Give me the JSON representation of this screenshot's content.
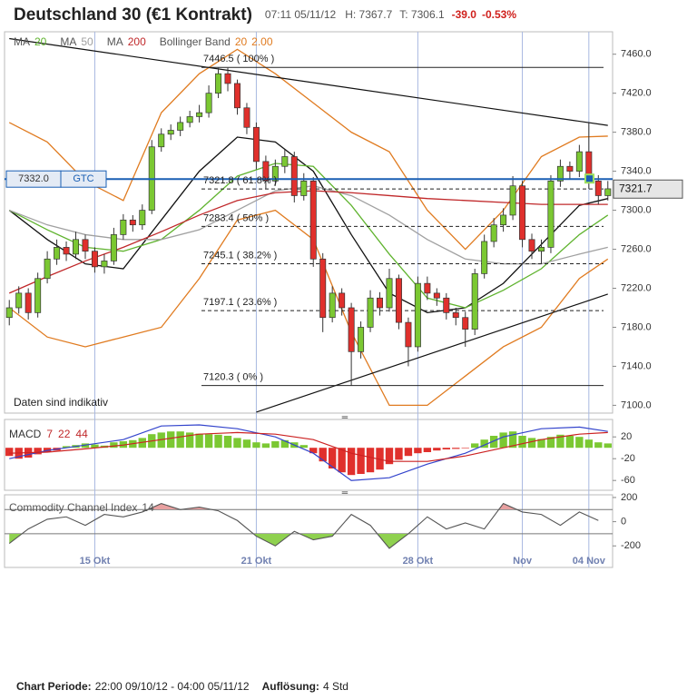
{
  "header": {
    "title": "Deutschland 30 (€1 Kontrakt)",
    "time": "07:11 05/11/12",
    "high": "H: 7367.7",
    "low": "T: 7306.1",
    "change": "-39.0",
    "change_pct": "-0.53%"
  },
  "chart_data": [
    {
      "type": "candlestick",
      "xlim": [
        -0.5,
        63.5
      ],
      "xticks": [
        {
          "value": 9,
          "label": "15 Okt"
        },
        {
          "value": 26,
          "label": "21 Okt"
        },
        {
          "value": 43,
          "label": "28 Okt"
        },
        {
          "value": 54,
          "label": "Nov"
        },
        {
          "value": 61,
          "label": "04 Nov"
        }
      ],
      "ylim": [
        7092,
        7483
      ],
      "yticks": [
        {
          "value": 7100,
          "label": "7100.0"
        },
        {
          "value": 7140,
          "label": "7140.0"
        },
        {
          "value": 7180,
          "label": "7180.0"
        },
        {
          "value": 7220,
          "label": "7220.0"
        },
        {
          "value": 7260,
          "label": "7260.0"
        },
        {
          "value": 7300,
          "label": "7300.0"
        },
        {
          "value": 7340,
          "label": "7340.0"
        },
        {
          "value": 7380,
          "label": "7380.0"
        },
        {
          "value": 7420,
          "label": "7420.0"
        },
        {
          "value": 7460,
          "label": "7460.0"
        }
      ],
      "up_color": "#7bc832",
      "down_color": "#e0302c",
      "open": [
        7190,
        7200,
        7215,
        7195,
        7230,
        7250,
        7262,
        7255,
        7270,
        7258,
        7242,
        7248,
        7275,
        7290,
        7285,
        7300,
        7365,
        7378,
        7382,
        7390,
        7396,
        7400,
        7420,
        7440,
        7430,
        7405,
        7385,
        7350,
        7330,
        7345,
        7355,
        7315,
        7330,
        7250,
        7190,
        7215,
        7200,
        7155,
        7180,
        7210,
        7200,
        7230,
        7185,
        7160,
        7225,
        7215,
        7210,
        7195,
        7190,
        7178,
        7235,
        7268,
        7285,
        7295,
        7325,
        7270,
        7258,
        7262,
        7330,
        7345,
        7340,
        7360,
        7330,
        7315
      ],
      "high": [
        7208,
        7222,
        7220,
        7236,
        7258,
        7270,
        7268,
        7278,
        7275,
        7262,
        7255,
        7282,
        7296,
        7295,
        7306,
        7372,
        7384,
        7388,
        7396,
        7402,
        7408,
        7428,
        7446,
        7446,
        7434,
        7410,
        7390,
        7356,
        7352,
        7362,
        7360,
        7338,
        7334,
        7256,
        7222,
        7220,
        7205,
        7186,
        7218,
        7216,
        7240,
        7234,
        7190,
        7232,
        7232,
        7220,
        7215,
        7200,
        7196,
        7240,
        7275,
        7292,
        7302,
        7335,
        7330,
        7276,
        7270,
        7336,
        7352,
        7350,
        7367,
        7390,
        7336,
        7330
      ],
      "low": [
        7182,
        7194,
        7188,
        7190,
        7225,
        7244,
        7248,
        7250,
        7250,
        7236,
        7235,
        7244,
        7270,
        7278,
        7280,
        7296,
        7360,
        7372,
        7376,
        7385,
        7390,
        7395,
        7415,
        7422,
        7398,
        7378,
        7342,
        7322,
        7325,
        7338,
        7308,
        7310,
        7242,
        7175,
        7185,
        7192,
        7120,
        7148,
        7175,
        7192,
        7196,
        7178,
        7140,
        7155,
        7208,
        7202,
        7188,
        7182,
        7160,
        7172,
        7230,
        7262,
        7278,
        7290,
        7262,
        7250,
        7245,
        7256,
        7324,
        7332,
        7334,
        7322,
        7306,
        7310
      ],
      "close": [
        7200,
        7215,
        7195,
        7230,
        7250,
        7262,
        7255,
        7270,
        7258,
        7242,
        7248,
        7275,
        7290,
        7285,
        7300,
        7365,
        7378,
        7382,
        7390,
        7396,
        7400,
        7420,
        7440,
        7430,
        7405,
        7385,
        7350,
        7330,
        7345,
        7355,
        7315,
        7330,
        7250,
        7190,
        7215,
        7200,
        7155,
        7180,
        7210,
        7200,
        7230,
        7185,
        7160,
        7225,
        7215,
        7210,
        7195,
        7190,
        7178,
        7235,
        7268,
        7285,
        7295,
        7325,
        7270,
        7258,
        7262,
        7330,
        7345,
        7340,
        7360,
        7330,
        7315,
        7322
      ],
      "lines": [
        {
          "name": "MA",
          "param": "20",
          "color": "#5fb32e",
          "x": [
            0,
            4,
            8,
            12,
            16,
            20,
            24,
            28,
            32,
            36,
            40,
            44,
            48,
            52,
            56,
            60,
            63
          ],
          "values": [
            7300,
            7280,
            7262,
            7258,
            7270,
            7300,
            7335,
            7348,
            7345,
            7305,
            7255,
            7210,
            7200,
            7218,
            7240,
            7275,
            7295
          ]
        },
        {
          "name": "MA",
          "param": "50",
          "color": "#a0a0a0",
          "x": [
            0,
            4,
            8,
            12,
            16,
            20,
            24,
            28,
            32,
            36,
            40,
            44,
            48,
            52,
            56,
            60,
            63
          ],
          "values": [
            7300,
            7285,
            7275,
            7270,
            7270,
            7280,
            7300,
            7320,
            7325,
            7315,
            7295,
            7270,
            7250,
            7245,
            7245,
            7255,
            7262
          ]
        },
        {
          "name": "MA",
          "param": "200",
          "color": "#c0282a",
          "x": [
            0,
            4,
            8,
            12,
            16,
            20,
            24,
            28,
            32,
            36,
            40,
            44,
            48,
            52,
            56,
            60,
            63
          ],
          "values": [
            7215,
            7232,
            7248,
            7262,
            7278,
            7295,
            7310,
            7318,
            7320,
            7318,
            7315,
            7312,
            7310,
            7308,
            7306,
            7306,
            7306
          ]
        }
      ],
      "bollinger": {
        "name": "Bollinger Band",
        "params": [
          "20",
          "2.00"
        ],
        "color": "#e07b20",
        "middle_color": "#111111",
        "x": [
          0,
          4,
          8,
          12,
          16,
          20,
          24,
          28,
          32,
          36,
          40,
          44,
          48,
          52,
          56,
          60,
          63
        ],
        "upper": [
          7390,
          7370,
          7330,
          7310,
          7400,
          7440,
          7465,
          7440,
          7410,
          7380,
          7360,
          7300,
          7260,
          7300,
          7355,
          7375,
          7376
        ],
        "middle": [
          7300,
          7270,
          7245,
          7240,
          7290,
          7340,
          7375,
          7370,
          7340,
          7275,
          7215,
          7195,
          7200,
          7225,
          7265,
          7305,
          7312
        ],
        "lower": [
          7200,
          7170,
          7160,
          7170,
          7180,
          7230,
          7290,
          7300,
          7270,
          7175,
          7100,
          7100,
          7130,
          7160,
          7180,
          7230,
          7250
        ]
      },
      "fib_levels": [
        {
          "value": 7446.5,
          "label": "7446.5 ( 100% )"
        },
        {
          "value": 7321.8,
          "label": "7321.8 ( 61.8% )"
        },
        {
          "value": 7283.4,
          "label": "7283.4 ( 50% )"
        },
        {
          "value": 7245.1,
          "label": "7245.1 ( 38.2% )"
        },
        {
          "value": 7197.1,
          "label": "7197.1 ( 23.6% )"
        },
        {
          "value": 7120.3,
          "label": "7120.3 ( 0% )"
        }
      ],
      "trendlines": [
        {
          "x": [
            0,
            63
          ],
          "values": [
            7476,
            7387
          ]
        },
        {
          "x": [
            26,
            63
          ],
          "values": [
            7093,
            7214
          ]
        }
      ],
      "order_line": {
        "value": 7332.0,
        "label": "7332.0",
        "tag": "GTC"
      },
      "last_price": {
        "value": 7321.7,
        "label": "7321.7"
      },
      "note": "Daten sind indikativ"
    },
    {
      "type": "macd",
      "label": "MACD",
      "params": [
        "7",
        "22",
        "44"
      ],
      "ylim": [
        -78,
        52
      ],
      "yticks": [
        20,
        -20,
        -60
      ],
      "pos_color": "#7bc832",
      "neg_color": "#e0302c",
      "histogram": [
        -15,
        -20,
        -18,
        -12,
        -8,
        -5,
        3,
        5,
        8,
        6,
        4,
        10,
        12,
        14,
        18,
        25,
        28,
        30,
        30,
        28,
        26,
        25,
        24,
        22,
        18,
        15,
        10,
        8,
        12,
        14,
        10,
        5,
        -10,
        -25,
        -38,
        -45,
        -50,
        -48,
        -45,
        -40,
        -30,
        -22,
        -15,
        -10,
        -8,
        -5,
        -3,
        -2,
        -1,
        8,
        15,
        22,
        28,
        30,
        22,
        18,
        16,
        20,
        24,
        22,
        20,
        15,
        10,
        8
      ],
      "lines": [
        {
          "color": "#3344cc",
          "x": [
            0,
            4,
            8,
            12,
            16,
            20,
            24,
            28,
            32,
            36,
            40,
            44,
            48,
            52,
            56,
            60,
            63
          ],
          "values": [
            -20,
            -5,
            5,
            15,
            40,
            42,
            35,
            20,
            -10,
            -60,
            -55,
            -30,
            -10,
            20,
            35,
            38,
            30
          ]
        },
        {
          "color": "#cc2222",
          "x": [
            0,
            4,
            8,
            12,
            16,
            20,
            24,
            28,
            32,
            36,
            40,
            44,
            48,
            52,
            56,
            60,
            63
          ],
          "values": [
            -10,
            -8,
            -2,
            5,
            15,
            25,
            28,
            25,
            15,
            -10,
            -25,
            -25,
            -15,
            0,
            15,
            25,
            28
          ]
        }
      ]
    },
    {
      "type": "cci",
      "label": "Commodity Channel Index",
      "param": "14",
      "ylim": [
        -378,
        222
      ],
      "yticks": [
        200,
        0,
        -200
      ],
      "bands": [
        100,
        -100
      ],
      "color": "#555555",
      "over_color": "#e8a0a0",
      "under_color": "#8fd14f",
      "x": [
        0,
        2,
        4,
        6,
        8,
        10,
        12,
        14,
        16,
        18,
        20,
        22,
        24,
        26,
        28,
        30,
        32,
        34,
        36,
        38,
        40,
        42,
        44,
        46,
        48,
        50,
        52,
        54,
        56,
        58,
        60,
        62
      ],
      "values": [
        -180,
        -60,
        20,
        40,
        -30,
        60,
        40,
        80,
        150,
        100,
        120,
        90,
        10,
        -120,
        -200,
        -80,
        -150,
        -120,
        60,
        -30,
        -220,
        -100,
        40,
        -60,
        -10,
        -60,
        150,
        80,
        60,
        -30,
        80,
        10
      ]
    }
  ],
  "footer": {
    "period_label": "Chart Periode:",
    "period": "22:00 09/10/12 - 04:00 05/11/12",
    "resolution_label": "Auflösung:",
    "resolution": "4 Std"
  }
}
